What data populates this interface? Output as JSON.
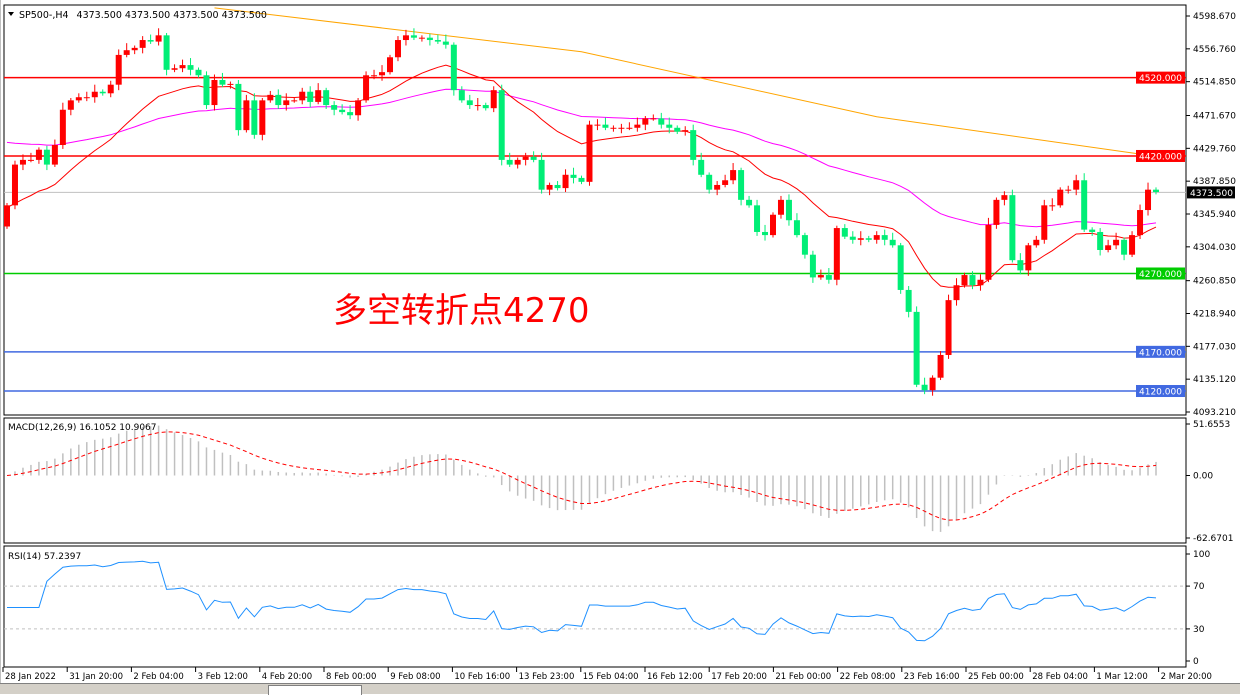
{
  "header": {
    "symbol": "SP500-,H4",
    "ohlc": "4373.500 4373.500 4373.500 4373.500"
  },
  "annotation": "多空转折点4270",
  "colors": {
    "up": "#ff0000",
    "down": "#00ee76",
    "fast_ma": "#ff0000",
    "mid_ma": "#ff00ff",
    "slow_ma": "#ffa500",
    "rsi": "#1e90ff",
    "macd_hist": "#c0c0c0",
    "macd_signal": "#ff0000"
  },
  "chart_data": [
    {
      "type": "candlestick",
      "symbol": "SP500-",
      "timeframe": "H4",
      "ylim": [
        4093.21,
        4598.67
      ],
      "y_ticks": [
        "4598.670",
        "4556.760",
        "4514.850",
        "4471.670",
        "4429.760",
        "4387.850",
        "4345.940",
        "4304.030",
        "4260.850",
        "4218.940",
        "4177.030",
        "4135.120",
        "4093.210"
      ],
      "x_ticks": [
        "28 Jan 2022",
        "31 Jan 20:00",
        "2 Feb 04:00",
        "3 Feb 12:00",
        "4 Feb 20:00",
        "8 Feb 00:00",
        "9 Feb 08:00",
        "10 Feb 16:00",
        "13 Feb 23:00",
        "15 Feb 04:00",
        "16 Feb 12:00",
        "17 Feb 20:00",
        "21 Feb 00:00",
        "22 Feb 08:00",
        "23 Feb 16:00",
        "25 Feb 00:00",
        "28 Feb 04:00",
        "1 Mar 12:00",
        "2 Mar 20:00"
      ],
      "first_open": 4330,
      "closes": [
        4357,
        4409,
        4415,
        4415,
        4428,
        4409,
        4434,
        4479,
        4491,
        4495,
        4495,
        4502,
        4500,
        4511,
        4549,
        4555,
        4558,
        4568,
        4566,
        4574,
        4530,
        4532,
        4536,
        4530,
        4523,
        4485,
        4517,
        4511,
        4512,
        4453,
        4491,
        4447,
        4491,
        4498,
        4485,
        4491,
        4491,
        4502,
        4489,
        4504,
        4485,
        4479,
        4476,
        4472,
        4491,
        4523,
        4523,
        4527,
        4546,
        4568,
        4574,
        4571,
        4571,
        4568,
        4566,
        4562,
        4504,
        4491,
        4485,
        4485,
        4481,
        4504,
        4415,
        4409,
        4415,
        4419,
        4415,
        4377,
        4383,
        4379,
        4396,
        4392,
        4387,
        4460,
        4460,
        4456,
        4456,
        4456,
        4456,
        4460,
        4468,
        4468,
        4460,
        4456,
        4451,
        4453,
        4415,
        4396,
        4377,
        4383,
        4389,
        4402,
        4364,
        4357,
        4323,
        4319,
        4345,
        4364,
        4338,
        4319,
        4294,
        4265,
        4268,
        4262,
        4328,
        4317,
        4313,
        4315,
        4313,
        4319,
        4313,
        4306,
        4249,
        4221,
        4128,
        4121,
        4137,
        4166,
        4236,
        4255,
        4268,
        4255,
        4262,
        4332,
        4364,
        4370,
        4287,
        4274,
        4306,
        4313,
        4357,
        4357,
        4377,
        4377,
        4389,
        4326,
        4323,
        4300,
        4306,
        4313,
        4294,
        4319,
        4351,
        4377,
        4374
      ],
      "slow_ma_points": [
        [
          26,
          4609
        ],
        [
          72,
          4553
        ],
        [
          109,
          4470
        ],
        [
          143,
          4421
        ]
      ],
      "levels": [
        {
          "value": 4520,
          "label": "4520.000",
          "color": "#ff0000"
        },
        {
          "value": 4420,
          "label": "4420.000",
          "color": "#ff0000"
        },
        {
          "value": 4270,
          "label": "4270.000",
          "color": "#00cc00"
        },
        {
          "value": 4170,
          "label": "4170.000",
          "color": "#4169e1"
        },
        {
          "value": 4120,
          "label": "4120.000",
          "color": "#4169e1"
        }
      ],
      "current_price": {
        "value": 4373.5,
        "label": "4373.500"
      }
    },
    {
      "type": "macd",
      "title": "MACD(12,26,9) 16.1052 10.9067",
      "params": [
        12,
        26,
        9
      ],
      "ylim": [
        -62.6701,
        51.6553
      ],
      "y_ticks": [
        "51.6553",
        "0.00",
        "-62.6701"
      ]
    },
    {
      "type": "rsi",
      "title": "RSI(14) 57.2397",
      "period": 14,
      "ylim": [
        0,
        100
      ],
      "levels": [
        70,
        30
      ],
      "y_ticks": [
        "100",
        "70",
        "30",
        "0"
      ]
    }
  ]
}
